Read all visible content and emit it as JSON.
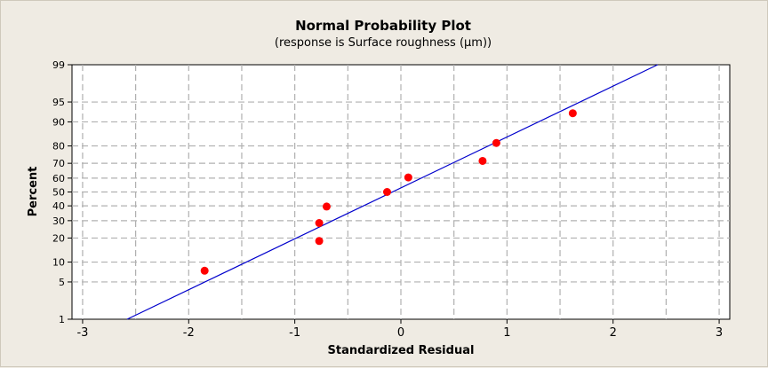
{
  "chart_data": {
    "type": "scatter",
    "title": "Normal Probability Plot",
    "subtitle": "(response is Surface roughness (µm))",
    "xlabel": "Standardized Residual",
    "ylabel": "Percent",
    "xlim": [
      -3.1,
      3.1
    ],
    "ylim": [
      1,
      99
    ],
    "yscale": "normal-probability",
    "x_ticks": [
      -3,
      -2,
      -1,
      0,
      1,
      2,
      3
    ],
    "x_tick_labels": [
      "-3",
      "-2",
      "-1",
      "0",
      "1",
      "2",
      "3"
    ],
    "y_ticks": [
      1,
      5,
      10,
      20,
      30,
      40,
      50,
      60,
      70,
      80,
      90,
      95,
      99
    ],
    "y_tick_labels": [
      "1",
      "5",
      "10",
      "20",
      "30",
      "40",
      "50",
      "60",
      "70",
      "80",
      "90",
      "95",
      "99"
    ],
    "grid": true,
    "points": [
      {
        "x": -1.85,
        "y": 7.5
      },
      {
        "x": -0.77,
        "y": 18.5
      },
      {
        "x": -0.77,
        "y": 28.5
      },
      {
        "x": -0.7,
        "y": 39.5
      },
      {
        "x": -0.13,
        "y": 50
      },
      {
        "x": 0.07,
        "y": 60.5
      },
      {
        "x": 0.77,
        "y": 71.5
      },
      {
        "x": 0.9,
        "y": 81.5
      },
      {
        "x": 1.62,
        "y": 92.5
      }
    ],
    "fit_line": [
      {
        "x": -2.58,
        "y": 1
      },
      {
        "x": 2.42,
        "y": 99
      }
    ],
    "colors": {
      "points": "#ff0000",
      "fit_line": "#0000cc",
      "grid": "#b0b0b0",
      "plot_background": "#ffffff",
      "page_background": "#efebe3"
    }
  }
}
